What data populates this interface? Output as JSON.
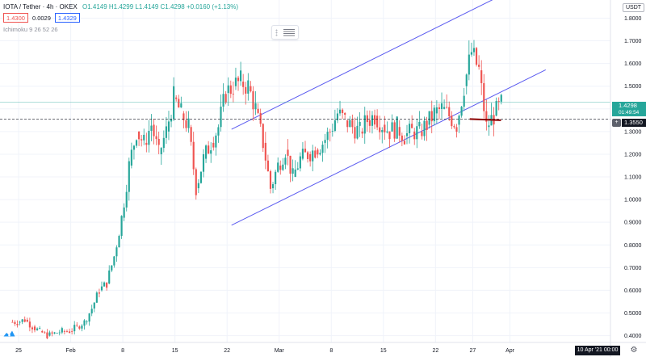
{
  "header": {
    "symbol": "IOTA / Tether · 4h · OKEX",
    "ohlc": "O1.4149  H1.4299  L1.4149  C1.4298  +0.0160 (+1.13%)",
    "sell_price": "1.4300",
    "spread": "0.0029",
    "buy_price": "1.4329",
    "indicator": "Ichimoku 9 26 52 26"
  },
  "price_scale": {
    "currency": "USDT",
    "last_price": "1.4298",
    "countdown": "01:49:54",
    "hline_price": "1.3550"
  },
  "time_scale": {
    "crosshair_time": "10 Apr '21  00:00"
  },
  "colors": {
    "up": "#26a69a",
    "down": "#ef5350",
    "channel": "#5b5bf0",
    "marker": "#8b0000",
    "grid": "#f0f3fa"
  },
  "icons": {
    "settings": "gear-icon",
    "logo": "tradingview-logo-icon",
    "drag": "drag-handle-icon"
  },
  "chart_data": {
    "type": "candlestick",
    "title": "IOTA / Tether · 4h · OKEX",
    "ylim": [
      0.37,
      1.88
    ],
    "y_ticks": [
      "1.8000",
      "1.7000",
      "1.6000",
      "1.5000",
      "1.4000",
      "1.3000",
      "1.2000",
      "1.1000",
      "1.0000",
      "0.9000",
      "0.8000",
      "0.7000",
      "0.6000",
      "0.5000",
      "0.4000"
    ],
    "x_ticks": [
      {
        "label": "25",
        "day": -13
      },
      {
        "label": "Feb",
        "day": -6
      },
      {
        "label": "8",
        "day": 1
      },
      {
        "label": "15",
        "day": 8
      },
      {
        "label": "22",
        "day": 15
      },
      {
        "label": "Mar",
        "day": 22
      },
      {
        "label": "8",
        "day": 29
      },
      {
        "label": "15",
        "day": 36
      },
      {
        "label": "22",
        "day": 43
      },
      {
        "label": "27",
        "day": 48
      },
      {
        "label": "Apr",
        "day": 53
      }
    ],
    "x_range_days": [
      -15.5,
      66.5
    ],
    "daily_close": [
      0.46,
      0.47,
      0.44,
      0.42,
      0.4,
      0.41,
      0.42,
      0.42,
      0.44,
      0.46,
      0.52,
      0.6,
      0.63,
      0.75,
      0.92,
      1.15,
      1.3,
      1.25,
      1.33,
      1.2,
      1.3,
      1.45,
      1.38,
      1.32,
      1.05,
      1.18,
      1.25,
      1.32,
      1.47,
      1.5,
      1.52,
      1.5,
      1.4,
      1.25,
      1.05,
      1.15,
      1.22,
      1.1,
      1.18,
      1.2,
      1.22,
      1.25,
      1.3,
      1.38,
      1.35,
      1.32,
      1.3,
      1.35,
      1.37,
      1.33,
      1.3,
      1.32,
      1.28,
      1.3,
      1.3,
      1.33,
      1.38,
      1.4,
      1.37,
      1.33,
      1.5,
      1.65,
      1.57,
      1.32,
      1.37,
      1.42
    ],
    "day_start": -14,
    "channel_upper": {
      "start": {
        "day": 15.6,
        "price": 1.31
      },
      "end": {
        "day": 51.2,
        "price": 1.89
      }
    },
    "channel_lower": {
      "start": {
        "day": 15.6,
        "price": 0.887
      },
      "end": {
        "day": 57.8,
        "price": 1.572
      }
    },
    "horizontal_line": 1.355,
    "marker_segment": {
      "start": {
        "day": 47.6,
        "price": 1.355
      },
      "end": {
        "day": 51.8,
        "price": 1.35
      }
    }
  }
}
